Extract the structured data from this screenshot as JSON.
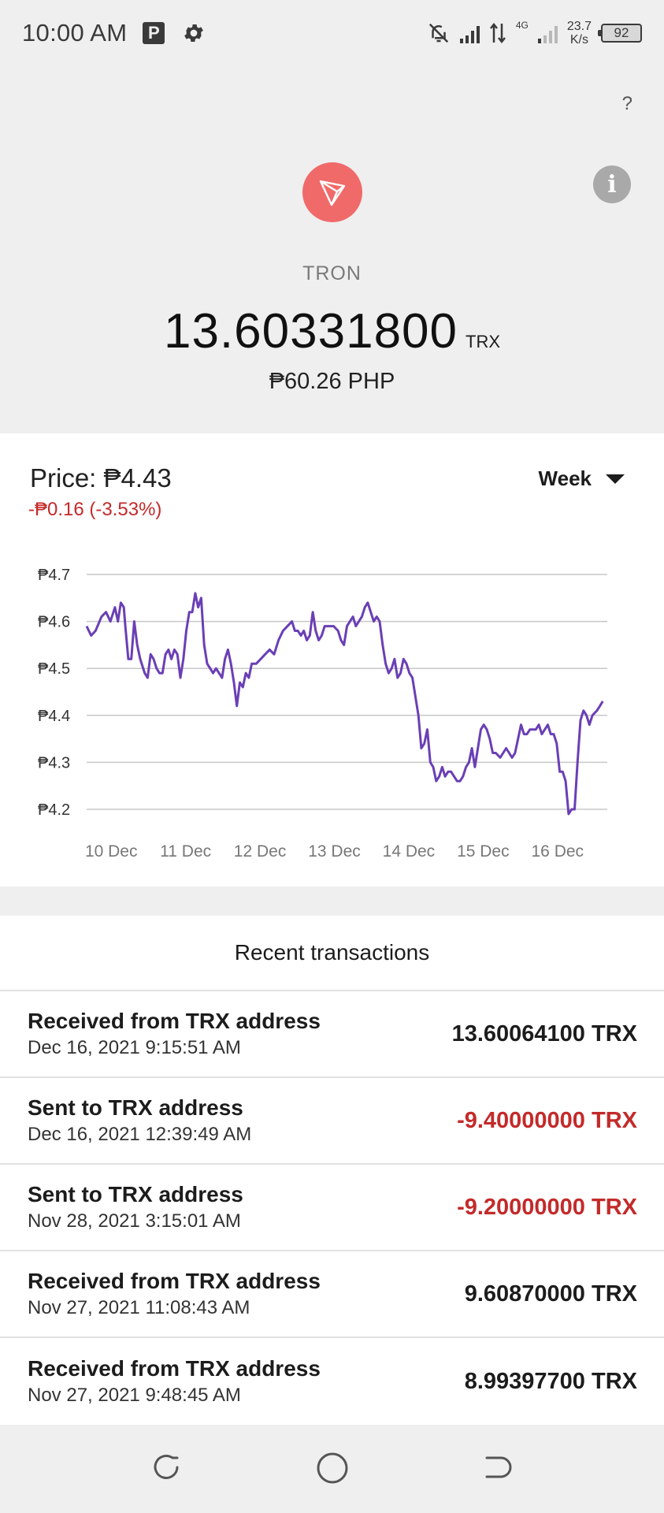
{
  "status_bar": {
    "time": "10:00 AM",
    "p_badge": "P",
    "network_type": "4G",
    "net_speed_value": "23.7",
    "net_speed_unit": "K/s",
    "battery": "92"
  },
  "header": {
    "help_label": "?",
    "info_label": "i",
    "coin_name": "TRON",
    "balance": "13.60331800",
    "balance_unit": "TRX",
    "fiat_value": "₱60.26 PHP"
  },
  "price": {
    "label": "Price: ₱4.43",
    "change": "-₱0.16 (-3.53%)",
    "range": "Week"
  },
  "colors": {
    "accent_line": "#6a3fb5",
    "negative": "#c42a2a",
    "logo_bg": "#f06a6a"
  },
  "chart_data": {
    "type": "line",
    "y_ticks": [
      "₱4.7",
      "₱4.6",
      "₱4.5",
      "₱4.4",
      "₱4.3",
      "₱4.2"
    ],
    "y_tick_values": [
      4.7,
      4.6,
      4.5,
      4.4,
      4.3,
      4.2
    ],
    "ylim": [
      4.2,
      4.7
    ],
    "x_ticks": [
      "10 Dec",
      "11 Dec",
      "12 Dec",
      "13 Dec",
      "14 Dec",
      "15 Dec",
      "16 Dec"
    ],
    "x_tick_positions": [
      0.5,
      1.5,
      2.5,
      3.5,
      4.5,
      5.5,
      6.5
    ],
    "xlim": [
      0,
      7
    ],
    "grid": true,
    "series": [
      {
        "values": [
          [
            0.0,
            4.59
          ],
          [
            0.06,
            4.57
          ],
          [
            0.12,
            4.58
          ],
          [
            0.2,
            4.61
          ],
          [
            0.26,
            4.62
          ],
          [
            0.32,
            4.6
          ],
          [
            0.38,
            4.63
          ],
          [
            0.42,
            4.6
          ],
          [
            0.46,
            4.64
          ],
          [
            0.5,
            4.63
          ],
          [
            0.52,
            4.59
          ],
          [
            0.56,
            4.52
          ],
          [
            0.6,
            4.52
          ],
          [
            0.64,
            4.6
          ],
          [
            0.68,
            4.55
          ],
          [
            0.72,
            4.52
          ],
          [
            0.78,
            4.49
          ],
          [
            0.82,
            4.48
          ],
          [
            0.86,
            4.53
          ],
          [
            0.9,
            4.52
          ],
          [
            0.94,
            4.5
          ],
          [
            0.98,
            4.49
          ],
          [
            1.02,
            4.49
          ],
          [
            1.06,
            4.53
          ],
          [
            1.1,
            4.54
          ],
          [
            1.14,
            4.52
          ],
          [
            1.18,
            4.54
          ],
          [
            1.22,
            4.53
          ],
          [
            1.26,
            4.48
          ],
          [
            1.3,
            4.52
          ],
          [
            1.34,
            4.58
          ],
          [
            1.38,
            4.62
          ],
          [
            1.42,
            4.62
          ],
          [
            1.46,
            4.66
          ],
          [
            1.5,
            4.63
          ],
          [
            1.54,
            4.65
          ],
          [
            1.58,
            4.55
          ],
          [
            1.62,
            4.51
          ],
          [
            1.66,
            4.5
          ],
          [
            1.7,
            4.49
          ],
          [
            1.74,
            4.5
          ],
          [
            1.78,
            4.49
          ],
          [
            1.82,
            4.48
          ],
          [
            1.86,
            4.52
          ],
          [
            1.9,
            4.54
          ],
          [
            1.94,
            4.51
          ],
          [
            1.98,
            4.47
          ],
          [
            2.02,
            4.42
          ],
          [
            2.06,
            4.47
          ],
          [
            2.1,
            4.46
          ],
          [
            2.14,
            4.49
          ],
          [
            2.18,
            4.48
          ],
          [
            2.22,
            4.51
          ],
          [
            2.28,
            4.51
          ],
          [
            2.34,
            4.52
          ],
          [
            2.4,
            4.53
          ],
          [
            2.46,
            4.54
          ],
          [
            2.52,
            4.53
          ],
          [
            2.58,
            4.56
          ],
          [
            2.64,
            4.58
          ],
          [
            2.7,
            4.59
          ],
          [
            2.76,
            4.6
          ],
          [
            2.8,
            4.58
          ],
          [
            2.84,
            4.58
          ],
          [
            2.88,
            4.57
          ],
          [
            2.92,
            4.58
          ],
          [
            2.96,
            4.56
          ],
          [
            3.0,
            4.57
          ],
          [
            3.04,
            4.62
          ],
          [
            3.08,
            4.58
          ],
          [
            3.12,
            4.56
          ],
          [
            3.16,
            4.57
          ],
          [
            3.2,
            4.59
          ],
          [
            3.26,
            4.59
          ],
          [
            3.32,
            4.59
          ],
          [
            3.38,
            4.58
          ],
          [
            3.42,
            4.56
          ],
          [
            3.46,
            4.55
          ],
          [
            3.5,
            4.59
          ],
          [
            3.54,
            4.6
          ],
          [
            3.58,
            4.61
          ],
          [
            3.62,
            4.59
          ],
          [
            3.66,
            4.6
          ],
          [
            3.7,
            4.61
          ],
          [
            3.74,
            4.63
          ],
          [
            3.78,
            4.64
          ],
          [
            3.82,
            4.62
          ],
          [
            3.86,
            4.6
          ],
          [
            3.9,
            4.61
          ],
          [
            3.94,
            4.6
          ],
          [
            3.98,
            4.55
          ],
          [
            4.02,
            4.51
          ],
          [
            4.06,
            4.49
          ],
          [
            4.1,
            4.5
          ],
          [
            4.14,
            4.52
          ],
          [
            4.18,
            4.48
          ],
          [
            4.22,
            4.49
          ],
          [
            4.26,
            4.52
          ],
          [
            4.3,
            4.51
          ],
          [
            4.34,
            4.49
          ],
          [
            4.38,
            4.48
          ],
          [
            4.42,
            4.44
          ],
          [
            4.46,
            4.4
          ],
          [
            4.5,
            4.33
          ],
          [
            4.54,
            4.34
          ],
          [
            4.58,
            4.37
          ],
          [
            4.62,
            4.3
          ],
          [
            4.66,
            4.29
          ],
          [
            4.7,
            4.26
          ],
          [
            4.74,
            4.27
          ],
          [
            4.78,
            4.29
          ],
          [
            4.82,
            4.27
          ],
          [
            4.86,
            4.28
          ],
          [
            4.9,
            4.28
          ],
          [
            4.94,
            4.27
          ],
          [
            4.98,
            4.26
          ],
          [
            5.02,
            4.26
          ],
          [
            5.06,
            4.27
          ],
          [
            5.1,
            4.29
          ],
          [
            5.14,
            4.3
          ],
          [
            5.18,
            4.33
          ],
          [
            5.22,
            4.29
          ],
          [
            5.26,
            4.33
          ],
          [
            5.3,
            4.37
          ],
          [
            5.34,
            4.38
          ],
          [
            5.38,
            4.37
          ],
          [
            5.42,
            4.35
          ],
          [
            5.46,
            4.32
          ],
          [
            5.5,
            4.32
          ],
          [
            5.56,
            4.31
          ],
          [
            5.6,
            4.32
          ],
          [
            5.64,
            4.33
          ],
          [
            5.68,
            4.32
          ],
          [
            5.72,
            4.31
          ],
          [
            5.76,
            4.32
          ],
          [
            5.8,
            4.35
          ],
          [
            5.84,
            4.38
          ],
          [
            5.88,
            4.36
          ],
          [
            5.92,
            4.36
          ],
          [
            5.96,
            4.37
          ],
          [
            6.0,
            4.37
          ],
          [
            6.04,
            4.37
          ],
          [
            6.08,
            4.38
          ],
          [
            6.12,
            4.36
          ],
          [
            6.16,
            4.37
          ],
          [
            6.2,
            4.38
          ],
          [
            6.24,
            4.36
          ],
          [
            6.28,
            4.36
          ],
          [
            6.32,
            4.34
          ],
          [
            6.36,
            4.28
          ],
          [
            6.4,
            4.28
          ],
          [
            6.44,
            4.26
          ],
          [
            6.48,
            4.19
          ],
          [
            6.52,
            4.2
          ],
          [
            6.56,
            4.2
          ],
          [
            6.6,
            4.3
          ],
          [
            6.64,
            4.39
          ],
          [
            6.68,
            4.41
          ],
          [
            6.72,
            4.4
          ],
          [
            6.76,
            4.38
          ],
          [
            6.8,
            4.4
          ],
          [
            6.86,
            4.41
          ],
          [
            6.9,
            4.42
          ],
          [
            6.94,
            4.43
          ]
        ]
      }
    ]
  },
  "transactions": {
    "title": "Recent transactions",
    "items": [
      {
        "desc": "Received from TRX address",
        "date": "Dec 16, 2021 9:15:51 AM",
        "amount": "13.60064100 TRX",
        "negative": false
      },
      {
        "desc": "Sent to TRX address",
        "date": "Dec 16, 2021 12:39:49 AM",
        "amount": "-9.40000000 TRX",
        "negative": true
      },
      {
        "desc": "Sent to TRX address",
        "date": "Nov 28, 2021 3:15:01 AM",
        "amount": "-9.20000000 TRX",
        "negative": true
      },
      {
        "desc": "Received from TRX address",
        "date": "Nov 27, 2021 11:08:43 AM",
        "amount": "9.60870000 TRX",
        "negative": false
      },
      {
        "desc": "Received from TRX address",
        "date": "Nov 27, 2021 9:48:45 AM",
        "amount": "8.99397700 TRX",
        "negative": false
      }
    ]
  },
  "nav": {
    "icons": [
      "recent-apps-icon",
      "home-icon",
      "back-icon"
    ]
  }
}
